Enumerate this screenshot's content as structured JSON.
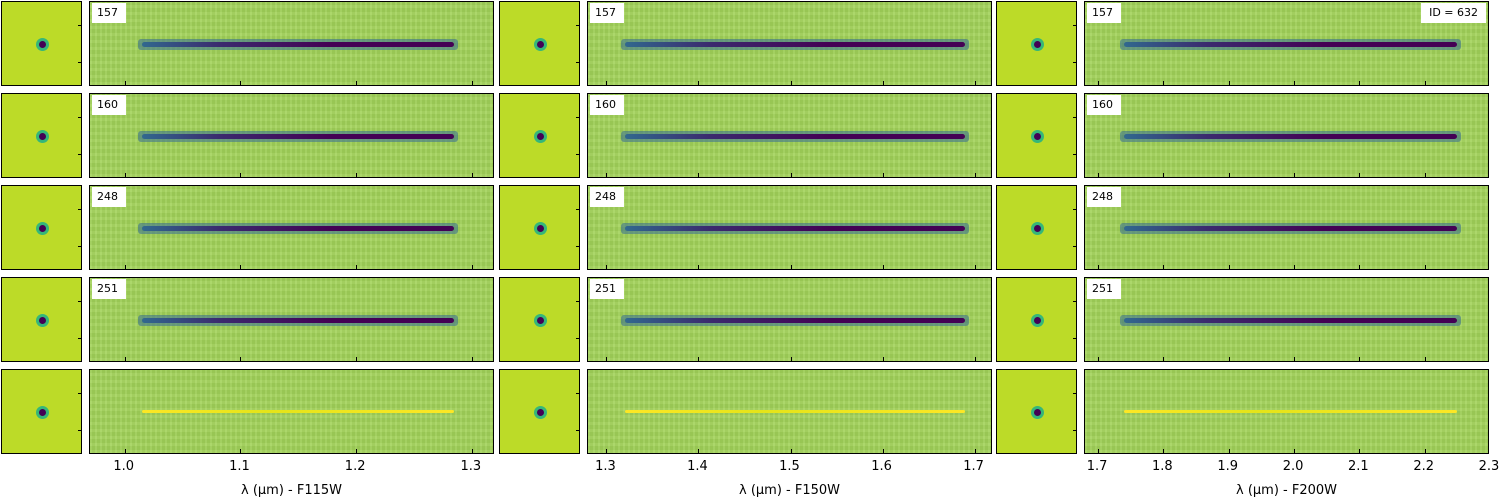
{
  "chart_data": {
    "type": "heatmap",
    "object_label": "ID = 632",
    "colormap": [
      "#440154",
      "#31688e",
      "#35b779",
      "#a2d35a",
      "#fde725"
    ],
    "background_color": "#bcd82a",
    "rows": [
      {
        "label": "157",
        "trace": "absorption"
      },
      {
        "label": "160",
        "trace": "absorption"
      },
      {
        "label": "248",
        "trace": "absorption"
      },
      {
        "label": "251",
        "trace": "absorption"
      },
      {
        "label": "",
        "trace": "residual"
      }
    ],
    "filters": [
      {
        "name": "F115W",
        "xlabel": "λ (μm) - F115W",
        "xlim": [
          0.97,
          1.32
        ],
        "trace_range": [
          1.015,
          1.285
        ],
        "ticks": [
          {
            "v": 1.0,
            "t": "1.0"
          },
          {
            "v": 1.1,
            "t": "1.1"
          },
          {
            "v": 1.2,
            "t": "1.2"
          },
          {
            "v": 1.3,
            "t": "1.3"
          }
        ]
      },
      {
        "name": "F150W",
        "xlabel": "λ (μm) - F150W",
        "xlim": [
          1.28,
          1.72
        ],
        "trace_range": [
          1.32,
          1.69
        ],
        "ticks": [
          {
            "v": 1.3,
            "t": "1.3"
          },
          {
            "v": 1.4,
            "t": "1.4"
          },
          {
            "v": 1.5,
            "t": "1.5"
          },
          {
            "v": 1.6,
            "t": "1.6"
          },
          {
            "v": 1.7,
            "t": "1.7"
          }
        ]
      },
      {
        "name": "F200W",
        "xlabel": "λ (μm) - F200W",
        "xlim": [
          1.68,
          2.3
        ],
        "trace_range": [
          1.74,
          2.25
        ],
        "ticks": [
          {
            "v": 1.7,
            "t": "1.7"
          },
          {
            "v": 1.8,
            "t": "1.8"
          },
          {
            "v": 1.9,
            "t": "1.9"
          },
          {
            "v": 2.0,
            "t": "2.0"
          },
          {
            "v": 2.1,
            "t": "2.1"
          },
          {
            "v": 2.2,
            "t": "2.2"
          },
          {
            "v": 2.3,
            "t": "2.3"
          }
        ]
      }
    ]
  }
}
